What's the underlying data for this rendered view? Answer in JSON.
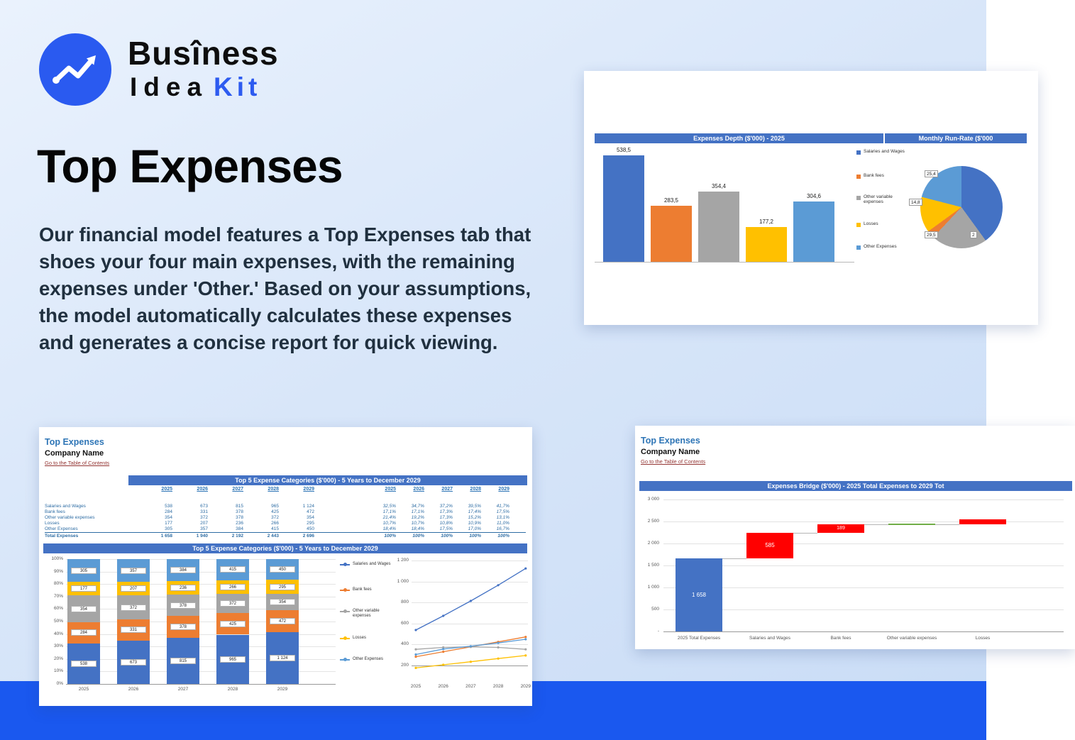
{
  "brand": {
    "word1": "Busîness",
    "word2": "Idea",
    "word3": "Kit"
  },
  "hero": {
    "title": "Top Expenses",
    "body": "Our financial model features a Top Expenses tab that shoes your four main expenses, with the remaining expenses under 'Other.' Based on your assumptions, the model automatically calculates these expenses and generates a concise report for quick viewing."
  },
  "sheet": {
    "title": "Top Expenses",
    "company": "Company Name",
    "link": "Go to the Table of Contents"
  },
  "palette": {
    "blue": "#4472C4",
    "orange": "#ED7D31",
    "gray": "#A5A5A5",
    "yellow": "#FFC000",
    "lightblue": "#5B9BD5",
    "red": "#FF0000",
    "green": "#70AD47",
    "accent": "#2d5bf0",
    "band": "#1a58ef",
    "header": "#4472C4"
  },
  "categories": [
    "Salaries and Wages",
    "Bank fees",
    "Other variable expenses",
    "Losses",
    "Other Expenses"
  ],
  "chart_data": [
    {
      "id": "expenses-depth",
      "type": "bar",
      "title": "Expenses Depth ($'000) - 2025",
      "categories": [
        "Salaries and Wages",
        "Bank fees",
        "Other variable expenses",
        "Losses",
        "Other Expenses"
      ],
      "values": [
        538.5,
        283.5,
        354.4,
        177.2,
        304.6
      ],
      "value_labels": [
        "538,5",
        "283,5",
        "354,4",
        "177,2",
        "304,6"
      ],
      "legend_position": "right",
      "grid": false
    },
    {
      "id": "monthly-run-rate",
      "type": "pie",
      "title": "Monthly Run-Rate ($'000",
      "labels": [
        "25,4",
        "14,8",
        "29,5",
        "2"
      ]
    },
    {
      "id": "top5-table",
      "type": "table",
      "title": "Top 5 Expense Categories ($'000) - 5 Years to December 2029",
      "years": [
        "2025",
        "2026",
        "2027",
        "2028",
        "2029"
      ],
      "rows": [
        {
          "label": "Salaries and Wages",
          "values": [
            "538",
            "673",
            "815",
            "965",
            "1 124"
          ],
          "pcts": [
            "32,5%",
            "34,7%",
            "37,2%",
            "39,5%",
            "41,7%"
          ]
        },
        {
          "label": "Bank fees",
          "values": [
            "284",
            "331",
            "378",
            "425",
            "472"
          ],
          "pcts": [
            "17,1%",
            "17,1%",
            "17,3%",
            "17,4%",
            "17,5%"
          ]
        },
        {
          "label": "Other variable expenses",
          "values": [
            "354",
            "372",
            "378",
            "372",
            "354"
          ],
          "pcts": [
            "21,4%",
            "19,2%",
            "17,3%",
            "15,2%",
            "13,1%"
          ]
        },
        {
          "label": "Losses",
          "values": [
            "177",
            "207",
            "236",
            "266",
            "295"
          ],
          "pcts": [
            "10,7%",
            "10,7%",
            "10,8%",
            "10,9%",
            "11,0%"
          ]
        },
        {
          "label": "Other Expenses",
          "values": [
            "305",
            "357",
            "384",
            "415",
            "450"
          ],
          "pcts": [
            "18,4%",
            "18,4%",
            "17,5%",
            "17,0%",
            "16,7%"
          ]
        }
      ],
      "total": {
        "label": "Total Expenses",
        "values": [
          "1 658",
          "1 940",
          "2 192",
          "2 443",
          "2 696"
        ],
        "pcts": [
          "100%",
          "100%",
          "100%",
          "100%",
          "100%"
        ]
      }
    },
    {
      "id": "top5-stacked",
      "type": "bar-stacked",
      "title": "Top 5 Expense Categories ($'000) - 5 Years to December 2029",
      "years": [
        "2025",
        "2026",
        "2027",
        "2028",
        "2029"
      ],
      "yticks": [
        "100%",
        "90%",
        "80%",
        "70%",
        "60%",
        "50%",
        "40%",
        "30%",
        "20%",
        "10%",
        "0%"
      ],
      "totals": [
        1658,
        1940,
        2192,
        2443,
        2696
      ],
      "series": [
        {
          "name": "Salaries and Wages",
          "values": [
            538,
            673,
            815,
            965,
            1124
          ],
          "labels": [
            "538",
            "673",
            "815",
            "965",
            "1 124"
          ]
        },
        {
          "name": "Bank fees",
          "values": [
            284,
            331,
            378,
            425,
            472
          ],
          "labels": [
            "284",
            "331",
            "378",
            "425",
            "472"
          ]
        },
        {
          "name": "Other variable expenses",
          "values": [
            354,
            372,
            378,
            372,
            354
          ],
          "labels": [
            "354",
            "372",
            "378",
            "372",
            "354"
          ]
        },
        {
          "name": "Losses",
          "values": [
            177,
            207,
            236,
            266,
            295
          ],
          "labels": [
            "177",
            "207",
            "236",
            "266",
            "295"
          ]
        },
        {
          "name": "Other Expenses",
          "values": [
            305,
            357,
            384,
            415,
            450
          ],
          "labels": [
            "305",
            "357",
            "384",
            "415",
            "450"
          ]
        }
      ]
    },
    {
      "id": "top5-lines",
      "type": "line",
      "yticks": [
        "1 200",
        "1 000",
        "800",
        "600",
        "400",
        "200"
      ],
      "ymin": 200,
      "ymax": 1200,
      "x": [
        "2025",
        "2026",
        "2027",
        "2028",
        "2029"
      ]
    },
    {
      "id": "expenses-bridge",
      "type": "waterfall",
      "title": "Expenses Bridge ($'000) - 2025 Total Expenses to 2029 Tot",
      "yticks": [
        "3 000",
        "2 500",
        "2 000",
        "1 500",
        "1 000",
        "500",
        "-"
      ],
      "columns": [
        {
          "label": "2025 Total Expenses",
          "start": 0,
          "end": 1658,
          "color": "blue",
          "value_label": "1 658"
        },
        {
          "label": "Salaries and Wages",
          "start": 1658,
          "end": 2243,
          "color": "red",
          "value_label": "585"
        },
        {
          "label": "Bank fees",
          "start": 2243,
          "end": 2432,
          "color": "red",
          "value_label": "189"
        },
        {
          "label": "Other variable expenses",
          "start": 2432,
          "end": 2432,
          "color": "flat",
          "value_label": ""
        },
        {
          "label": "Losses",
          "start": 2432,
          "end": 2550,
          "color": "red",
          "value_label": ""
        }
      ]
    }
  ]
}
